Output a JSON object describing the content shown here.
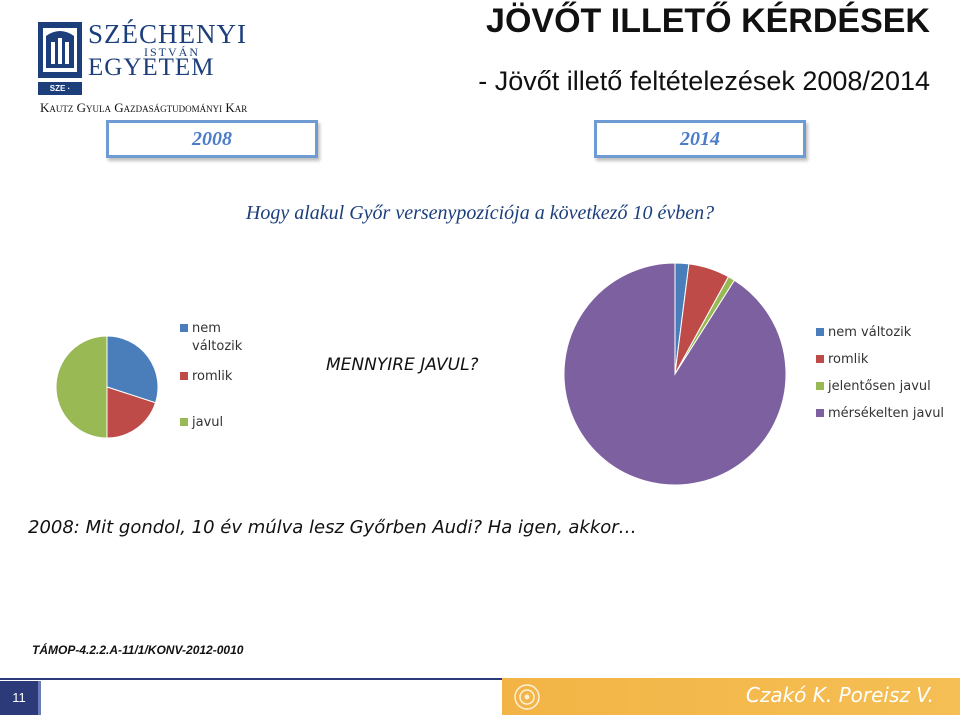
{
  "logo": {
    "line1": "SZÉCHENYI",
    "line2": "ISTVÁN",
    "line3": "EGYETEM",
    "badge": "SZE · GYŐR",
    "line4": "Kautz Gyula Gazdaságtudományi Kar"
  },
  "header": {
    "title": "JÖVŐT ILLETŐ KÉRDÉSEK",
    "subtitle": "- Jövőt illető feltételezések 2008/2014"
  },
  "years": {
    "left": "2008",
    "right": "2014"
  },
  "question": "Hogy alakul Győr versenypozíciója a következő 10 évben?",
  "mennyire": "MENNYIRE JAVUL?",
  "chart_data": [
    {
      "type": "pie",
      "slices": [
        {
          "label": "nem változik",
          "value": 30,
          "color": "#4a7ebb"
        },
        {
          "label": "romlik",
          "value": 20,
          "color": "#be4b48"
        },
        {
          "label": "javul",
          "value": 50,
          "color": "#98b954"
        }
      ],
      "legend_position": "right"
    },
    {
      "type": "pie",
      "slices": [
        {
          "label": "nem változik",
          "value": 2,
          "color": "#4a7ebb"
        },
        {
          "label": "romlik",
          "value": 6,
          "color": "#be4b48"
        },
        {
          "label": "jelentősen javul",
          "value": 1,
          "color": "#98b954"
        },
        {
          "label": "mérsékelten javul",
          "value": 91,
          "color": "#7d60a0"
        }
      ],
      "legend_position": "right"
    }
  ],
  "audi_question": "2008: Mit gondol, 10 év múlva lesz Győrben Audi? Ha igen, akkor…",
  "project_code": "TÁMOP-4.2.2.A-11/1/KONV-2012-0010",
  "footer": {
    "page_number": "11",
    "authors": "Czakó K. Poreisz V."
  },
  "colors": {
    "brand_blue": "#1c3f7c",
    "year_border": "#6f9bd3",
    "footer_navy": "#2c3a7a",
    "footer_orange": "#f2b445"
  }
}
